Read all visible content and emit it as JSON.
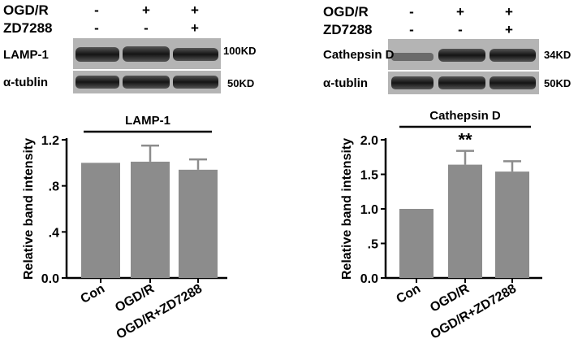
{
  "blots": [
    {
      "treatment_rows": [
        {
          "label": "OGD/R",
          "signs": [
            "-",
            "+",
            "+"
          ]
        },
        {
          "label": "ZD7288",
          "signs": [
            "-",
            "-",
            "+"
          ]
        }
      ],
      "bands": [
        {
          "label": "LAMP-1",
          "size": "100KD"
        },
        {
          "label": "α-tublin",
          "size": "50KD"
        }
      ]
    },
    {
      "treatment_rows": [
        {
          "label": "OGD/R",
          "signs": [
            "-",
            "+",
            "+"
          ]
        },
        {
          "label": "ZD7288",
          "signs": [
            "-",
            "-",
            "+"
          ]
        }
      ],
      "bands": [
        {
          "label": "Cathepsin D",
          "size": "34KD"
        },
        {
          "label": "α-tublin",
          "size": "50KD"
        }
      ]
    }
  ],
  "chart_data": [
    {
      "type": "bar",
      "title": "LAMP-1",
      "ylabel": "Relative band intensity",
      "categories": [
        "Con",
        "OGD/R",
        "OGD/R+ZD7288"
      ],
      "values": [
        1.0,
        1.01,
        0.94
      ],
      "errors": [
        0,
        0.14,
        0.09
      ],
      "annotations": [
        "",
        "",
        ""
      ],
      "ylim": [
        0,
        1.2
      ],
      "yticks": [
        0,
        0.4,
        0.8,
        1.2
      ],
      "ytick_labels": [
        "0.0",
        ".4",
        ".8",
        "1.2"
      ],
      "bar_color": "#8c8c8c",
      "grid": false
    },
    {
      "type": "bar",
      "title": "Cathepsin D",
      "ylabel": "Relative band intensity",
      "categories": [
        "Con",
        "OGD/R",
        "OGD/R+ZD7288"
      ],
      "values": [
        1.0,
        1.64,
        1.54
      ],
      "errors": [
        0,
        0.2,
        0.15
      ],
      "annotations": [
        "",
        "**",
        ""
      ],
      "ylim": [
        0,
        2.0
      ],
      "yticks": [
        0,
        0.5,
        1.0,
        1.5,
        2.0
      ],
      "ytick_labels": [
        "0.0",
        ".5",
        "1.0",
        "1.5",
        "2.0"
      ],
      "bar_color": "#8c8c8c",
      "grid": false
    }
  ]
}
